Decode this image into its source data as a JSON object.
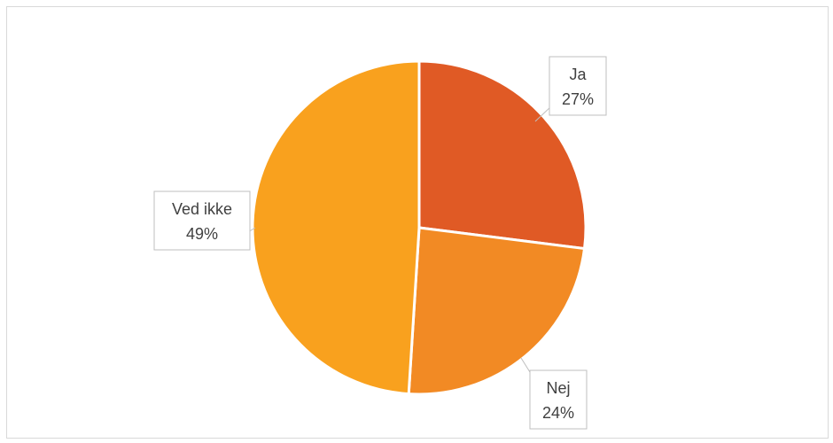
{
  "chart_data": {
    "type": "pie",
    "title": "",
    "slices": [
      {
        "label": "Ja",
        "value": 27,
        "display": "27%",
        "color": "#e05a25"
      },
      {
        "label": "Nej",
        "value": 24,
        "display": "24%",
        "color": "#f28a24"
      },
      {
        "label": "Ved ikke",
        "value": 49,
        "display": "49%",
        "color": "#f9a11e"
      }
    ],
    "legend": "none",
    "data_labels": "callouts"
  }
}
